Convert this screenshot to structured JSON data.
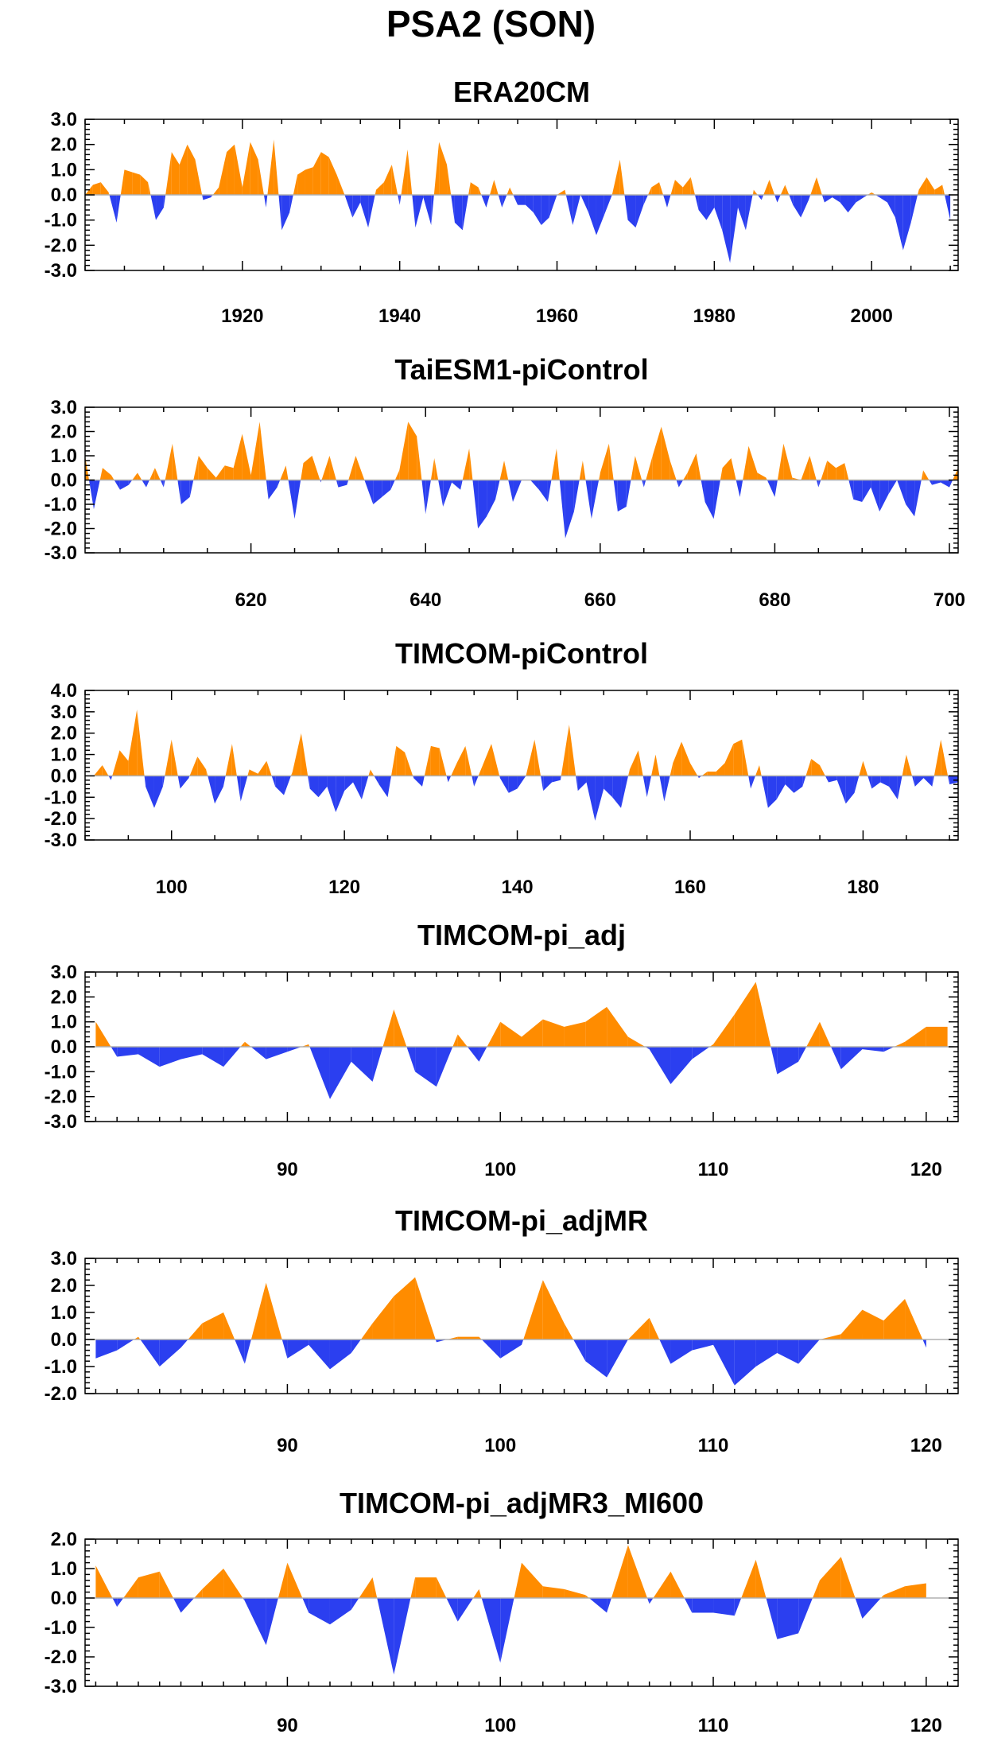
{
  "title": "PSA2 (SON)",
  "colors": {
    "positive": "#ff8c00",
    "negative": "#2b3ff0",
    "axis": "#000000",
    "zero": "#b0b0b0"
  },
  "chart_data": [
    {
      "type": "area",
      "title": "ERA20CM",
      "xlim": [
        1900,
        2011
      ],
      "ylim": [
        -3,
        3
      ],
      "yticks": [
        "3.0",
        "2.0",
        "1.0",
        "0.0",
        "-1.0",
        "-2.0",
        "-3.0"
      ],
      "ytick_values": [
        3,
        2,
        1,
        0,
        -1,
        -2,
        -3
      ],
      "xticks": [
        1920,
        1940,
        1960,
        1980,
        2000
      ],
      "x_start": 1900,
      "x_step": 1,
      "values": [
        0.0,
        0.4,
        0.5,
        0.1,
        -1.1,
        1.0,
        0.9,
        0.8,
        0.5,
        -1.0,
        -0.5,
        1.7,
        1.2,
        2.0,
        1.4,
        -0.2,
        -0.1,
        0.3,
        1.7,
        2.0,
        0.3,
        2.1,
        1.4,
        -0.5,
        2.2,
        -1.4,
        -0.7,
        0.8,
        1.0,
        1.1,
        1.7,
        1.5,
        0.8,
        0.0,
        -0.9,
        -0.3,
        -1.3,
        0.2,
        0.5,
        1.2,
        -0.4,
        1.8,
        -1.3,
        -0.1,
        -1.2,
        2.1,
        1.2,
        -1.1,
        -1.4,
        0.5,
        0.3,
        -0.5,
        0.6,
        -0.5,
        0.3,
        -0.4,
        -0.4,
        -0.7,
        -1.2,
        -0.9,
        0.0,
        0.2,
        -1.2,
        0.0,
        -0.7,
        -1.6,
        -0.8,
        0.0,
        1.4,
        -1.0,
        -1.3,
        -0.4,
        0.3,
        0.5,
        -0.5,
        0.6,
        0.3,
        0.7,
        -0.6,
        -1.0,
        -0.5,
        -1.4,
        -2.7,
        -0.5,
        -1.4,
        0.2,
        -0.2,
        0.6,
        -0.3,
        0.4,
        -0.4,
        -0.9,
        -0.2,
        0.7,
        -0.3,
        -0.1,
        -0.3,
        -0.7,
        -0.3,
        -0.1,
        0.1,
        -0.1,
        -0.3,
        -0.9,
        -2.2,
        -1.1,
        0.2,
        0.7,
        0.2,
        0.4,
        -1.0
      ]
    },
    {
      "type": "area",
      "title": "TaiESM1-piControl",
      "xlim": [
        601,
        701
      ],
      "ylim": [
        -3,
        3
      ],
      "yticks": [
        "3.0",
        "2.0",
        "1.0",
        "0.0",
        "-1.0",
        "-2.0",
        "-3.0"
      ],
      "ytick_values": [
        3,
        2,
        1,
        0,
        -1,
        -2,
        -3
      ],
      "xticks": [
        620,
        640,
        660,
        680,
        700
      ],
      "x_start": 601,
      "x_step": 1,
      "values": [
        1.0,
        -1.2,
        0.5,
        0.2,
        -0.4,
        -0.2,
        0.3,
        -0.3,
        0.5,
        -0.3,
        1.5,
        -1.0,
        -0.7,
        1.0,
        0.5,
        0.1,
        0.6,
        0.5,
        1.9,
        0.2,
        2.4,
        -0.8,
        -0.3,
        0.6,
        -1.6,
        0.7,
        1.0,
        -0.1,
        1.0,
        -0.3,
        -0.2,
        1.0,
        0.0,
        -1.0,
        -0.7,
        -0.4,
        0.4,
        2.4,
        1.8,
        -1.4,
        0.9,
        -1.1,
        -0.1,
        -0.4,
        1.3,
        -2.0,
        -1.5,
        -0.8,
        0.8,
        -0.9,
        0.0,
        0.0,
        -0.4,
        -0.9,
        1.3,
        -2.4,
        -1.3,
        0.8,
        -1.6,
        0.3,
        1.5,
        -1.3,
        -1.1,
        1.0,
        -0.3,
        1.0,
        2.2,
        0.8,
        -0.3,
        0.3,
        1.1,
        -0.9,
        -1.6,
        0.5,
        0.9,
        -0.7,
        1.4,
        0.3,
        0.1,
        -0.7,
        1.5,
        0.1,
        0.0,
        1.0,
        -0.3,
        0.8,
        0.5,
        0.7,
        -0.8,
        -0.9,
        -0.3,
        -1.3,
        -0.6,
        0.0,
        -1.0,
        -1.5,
        0.4,
        -0.2,
        -0.1,
        -0.3,
        0.5
      ]
    },
    {
      "type": "area",
      "title": "TIMCOM-piControl",
      "xlim": [
        90,
        191
      ],
      "ylim": [
        -3,
        4
      ],
      "yticks": [
        "4.0",
        "3.0",
        "2.0",
        "1.0",
        "0.0",
        "-1.0",
        "-2.0",
        "-3.0"
      ],
      "ytick_values": [
        4,
        3,
        2,
        1,
        0,
        -1,
        -2,
        -3
      ],
      "xticks": [
        100,
        120,
        140,
        160,
        180
      ],
      "x_start": 91,
      "x_step": 1,
      "values": [
        0.0,
        0.5,
        -0.2,
        1.2,
        0.7,
        3.1,
        -0.5,
        -1.5,
        -0.5,
        1.7,
        -0.6,
        -0.1,
        0.9,
        0.3,
        -1.3,
        -0.5,
        1.5,
        -1.2,
        0.3,
        0.1,
        0.7,
        -0.5,
        -0.9,
        0.2,
        2.0,
        -0.6,
        -1.0,
        -0.5,
        -1.7,
        -0.7,
        -0.3,
        -1.1,
        0.3,
        -0.4,
        -1.0,
        1.4,
        1.1,
        -0.1,
        -0.5,
        1.4,
        1.3,
        -0.3,
        0.6,
        1.4,
        -0.5,
        0.5,
        1.5,
        -0.1,
        -0.8,
        -0.6,
        0.0,
        1.7,
        -0.7,
        -0.3,
        -0.2,
        2.4,
        -0.7,
        -0.3,
        -2.1,
        -0.6,
        -1.0,
        -1.5,
        0.3,
        1.2,
        -1.0,
        1.0,
        -1.2,
        0.6,
        1.6,
        0.6,
        -0.1,
        0.2,
        0.2,
        0.6,
        1.5,
        1.7,
        -0.6,
        0.5,
        -1.5,
        -1.1,
        -0.4,
        -0.8,
        -0.5,
        0.8,
        0.5,
        -0.3,
        -0.2,
        -1.3,
        -0.8,
        0.7,
        -0.6,
        -0.3,
        -0.5,
        -1.1,
        1.0,
        -0.5,
        -0.1,
        -0.5,
        1.7,
        -0.4,
        -0.3
      ]
    },
    {
      "type": "area",
      "title": "TIMCOM-pi_adj",
      "xlim": [
        80.5,
        121.5
      ],
      "ylim": [
        -3,
        3
      ],
      "yticks": [
        "3.0",
        "2.0",
        "1.0",
        "0.0",
        "-1.0",
        "-2.0",
        "-3.0"
      ],
      "ytick_values": [
        3,
        2,
        1,
        0,
        -1,
        -2,
        -3
      ],
      "xticks": [
        90,
        100,
        110,
        120
      ],
      "x_start": 81,
      "x_step": 1,
      "values": [
        1.0,
        -0.4,
        -0.3,
        -0.8,
        -0.5,
        -0.3,
        -0.8,
        0.2,
        -0.5,
        -0.2,
        0.1,
        -2.1,
        -0.6,
        -1.4,
        1.5,
        -1.0,
        -1.6,
        0.5,
        -0.6,
        1.0,
        0.4,
        1.1,
        0.8,
        1.0,
        1.6,
        0.4,
        -0.1,
        -1.5,
        -0.5,
        0.1,
        1.3,
        2.6,
        -1.1,
        -0.6,
        1.0,
        -0.9,
        -0.1,
        -0.2,
        0.2,
        0.8,
        0.8
      ]
    },
    {
      "type": "area",
      "title": "TIMCOM-pi_adjMR",
      "xlim": [
        80.5,
        121.5
      ],
      "ylim": [
        -2,
        3
      ],
      "yticks": [
        "3.0",
        "2.0",
        "1.0",
        "0.0",
        "-1.0",
        "-2.0"
      ],
      "ytick_values": [
        3,
        2,
        1,
        0,
        -1,
        -2
      ],
      "xticks": [
        90,
        100,
        110,
        120
      ],
      "x_start": 81,
      "x_step": 1,
      "values": [
        -0.7,
        -0.4,
        0.1,
        -1.0,
        -0.3,
        0.6,
        1.0,
        -0.9,
        2.1,
        -0.7,
        -0.2,
        -1.1,
        -0.5,
        0.6,
        1.6,
        2.3,
        -0.1,
        0.1,
        0.1,
        -0.7,
        -0.2,
        2.2,
        0.6,
        -0.8,
        -1.4,
        0.0,
        0.8,
        -0.9,
        -0.4,
        -0.2,
        -1.7,
        -1.0,
        -0.5,
        -0.9,
        0.0,
        0.2,
        1.1,
        0.7,
        1.5,
        -0.3
      ]
    },
    {
      "type": "area",
      "title": "TIMCOM-pi_adjMR3_MI600",
      "xlim": [
        80.5,
        121.5
      ],
      "ylim": [
        -3,
        2
      ],
      "yticks": [
        "2.0",
        "1.0",
        "0.0",
        "-1.0",
        "-2.0",
        "-3.0"
      ],
      "ytick_values": [
        2,
        1,
        0,
        -1,
        -2,
        -3
      ],
      "xticks": [
        90,
        100,
        110,
        120
      ],
      "x_start": 81,
      "x_step": 1,
      "values": [
        1.1,
        -0.3,
        0.7,
        0.9,
        -0.5,
        0.3,
        1.0,
        -0.1,
        -1.6,
        1.2,
        -0.5,
        -0.9,
        -0.4,
        0.7,
        -2.6,
        0.7,
        0.7,
        -0.8,
        0.3,
        -2.2,
        1.2,
        0.4,
        0.3,
        0.1,
        -0.5,
        1.8,
        -0.2,
        0.9,
        -0.5,
        -0.5,
        -0.6,
        1.3,
        -1.4,
        -1.2,
        0.6,
        1.4,
        -0.7,
        0.1,
        0.4,
        0.5
      ]
    }
  ]
}
